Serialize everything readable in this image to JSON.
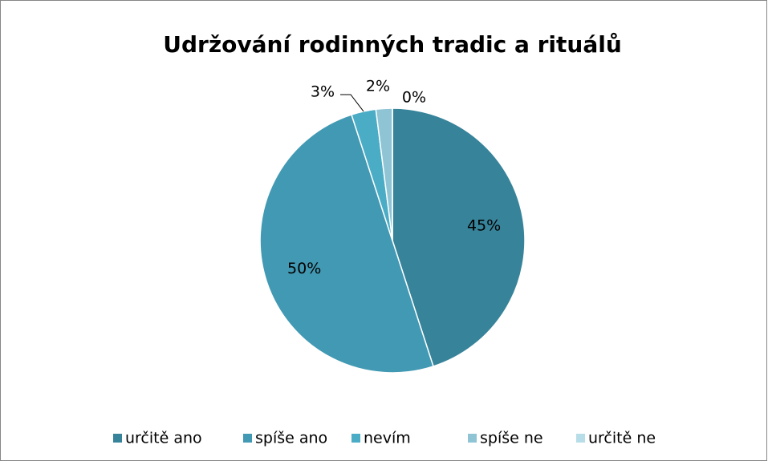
{
  "chart_data": {
    "type": "pie",
    "title": "Udržování rodinných tradic a rituálů",
    "categories": [
      "určitě ano",
      "spíše ano",
      "nevím",
      "spíše ne",
      "určitě ne"
    ],
    "values": [
      45,
      50,
      3,
      2,
      0
    ],
    "value_labels": [
      "45%",
      "50%",
      "3%",
      "2%",
      "0%"
    ],
    "colors": [
      "#37839a",
      "#4299b3",
      "#4bacc6",
      "#8fc4d5",
      "#b7dde8"
    ],
    "legend": "bottom"
  }
}
